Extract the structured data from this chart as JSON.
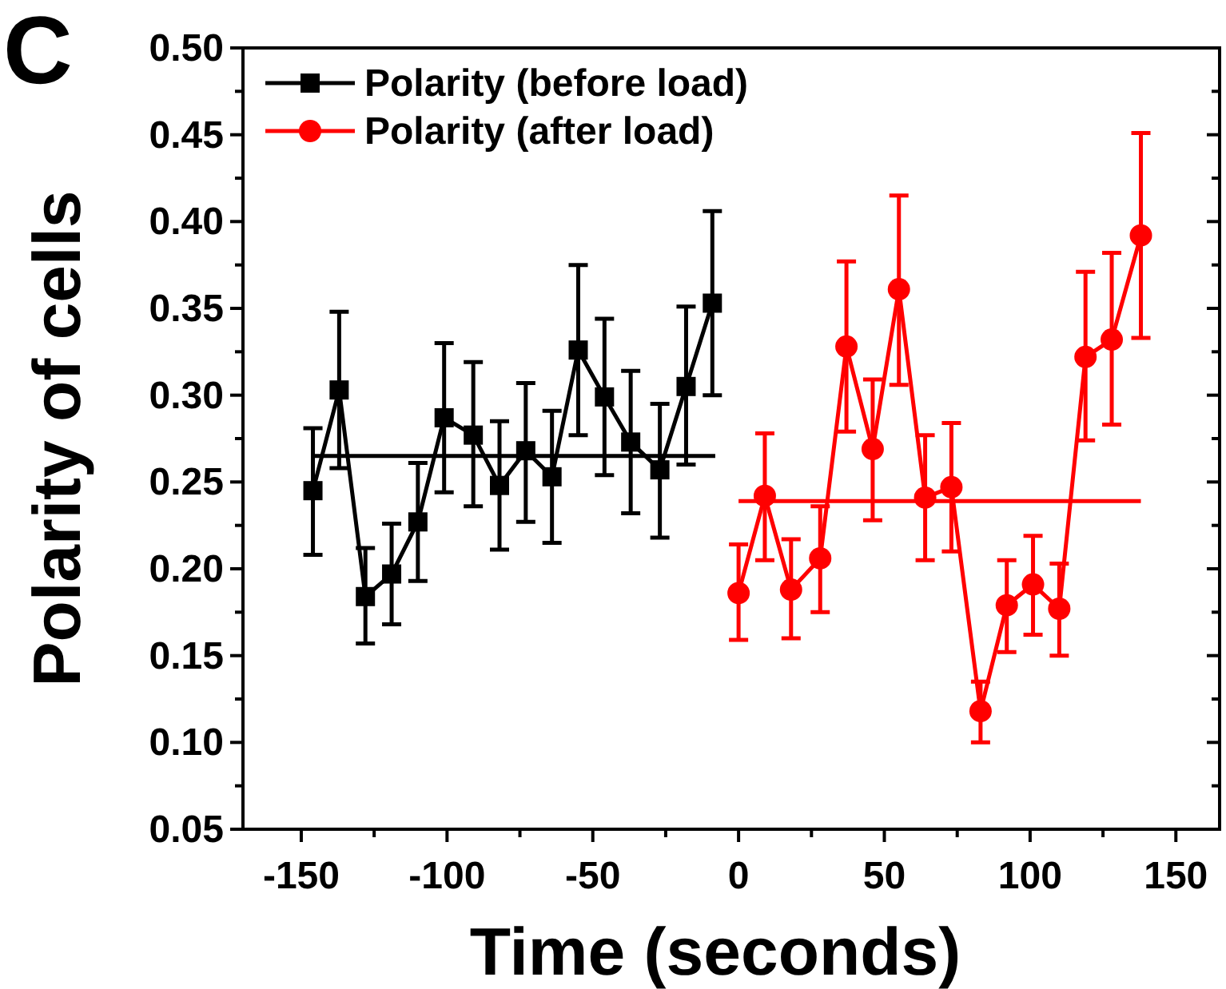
{
  "chart_data": {
    "type": "line",
    "xlabel": "Time (seconds)",
    "ylabel": "Polarity of cells",
    "annotations": [
      "C"
    ],
    "xlim": [
      -170,
      165
    ],
    "xticks": [
      -150,
      -100,
      -50,
      0,
      50,
      100,
      150
    ],
    "ylim": [
      0.05,
      0.5
    ],
    "yticks": [
      0.05,
      {
        "value": 0.1,
        "label": "0.10"
      },
      0.15,
      {
        "value": 0.2,
        "label": "0.20"
      },
      0.25,
      {
        "value": 0.3,
        "label": "0.30"
      },
      0.35,
      {
        "value": 0.4,
        "label": "0.40"
      },
      0.45,
      {
        "value": 0.5,
        "label": "0.50"
      }
    ],
    "grid": false,
    "legend": "top left",
    "line_style": "solid",
    "series": [
      {
        "name": "Polarity (before load)",
        "color": "#000000",
        "marker": "square",
        "x": [
          -146,
          -137,
          -128,
          -119,
          -110,
          -101,
          -91,
          -82,
          -73,
          -64,
          -55,
          -46,
          -37,
          -27,
          -18,
          -9
        ],
        "values": [
          0.245,
          0.303,
          0.184,
          0.197,
          0.227,
          0.287,
          0.277,
          0.248,
          0.268,
          0.253,
          0.326,
          0.299,
          0.273,
          0.257,
          0.305,
          0.353
        ],
        "errors": [
          [
            0.208,
            0.281
          ],
          [
            0.258,
            0.348
          ],
          [
            0.157,
            0.212
          ],
          [
            0.168,
            0.226
          ],
          [
            0.193,
            0.261
          ],
          [
            0.244,
            0.33
          ],
          [
            0.236,
            0.319
          ],
          [
            0.211,
            0.285
          ],
          [
            0.227,
            0.307
          ],
          [
            0.215,
            0.291
          ],
          [
            0.277,
            0.375
          ],
          [
            0.254,
            0.344
          ],
          [
            0.232,
            0.314
          ],
          [
            0.218,
            0.295
          ],
          [
            0.26,
            0.351
          ],
          [
            0.3,
            0.406
          ]
        ]
      },
      {
        "name": "Polarity (after load)",
        "color": "#ff0000",
        "marker": "circle",
        "x": [
          0,
          9,
          18,
          28,
          37,
          46,
          55,
          64,
          73,
          83,
          92,
          101,
          110,
          119,
          128,
          138
        ],
        "values": [
          0.186,
          0.242,
          0.188,
          0.206,
          0.328,
          0.269,
          0.361,
          0.241,
          0.247,
          0.118,
          0.179,
          0.191,
          0.177,
          0.322,
          0.332,
          0.392
        ],
        "errors": [
          [
            0.159,
            0.214
          ],
          [
            0.205,
            0.278
          ],
          [
            0.16,
            0.217
          ],
          [
            0.175,
            0.236
          ],
          [
            0.279,
            0.377
          ],
          [
            0.228,
            0.309
          ],
          [
            0.306,
            0.415
          ],
          [
            0.205,
            0.277
          ],
          [
            0.21,
            0.284
          ],
          [
            0.1,
            0.135
          ],
          [
            0.152,
            0.205
          ],
          [
            0.162,
            0.219
          ],
          [
            0.15,
            0.203
          ],
          [
            0.274,
            0.371
          ],
          [
            0.283,
            0.382
          ],
          [
            0.333,
            0.451
          ]
        ]
      },
      {
        "color": "#000000",
        "marker": "none",
        "x": [
          -146,
          -8
        ],
        "values": [
          0.265,
          0.265
        ]
      },
      {
        "color": "#ff0000",
        "marker": "none",
        "x": [
          0,
          138
        ],
        "values": [
          0.239,
          0.239
        ]
      }
    ]
  }
}
